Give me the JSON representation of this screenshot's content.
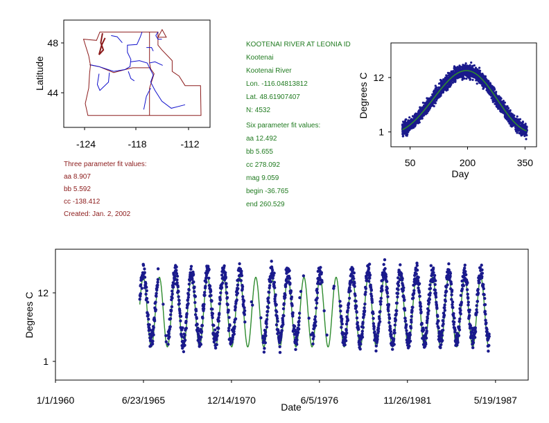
{
  "colors": {
    "state_border": "#8b1a1a",
    "river": "#1010cc",
    "points": "#1a1a8c",
    "fit": "#2e8b2e",
    "text_green": "#1f7a1f",
    "text_red": "#8b1a1a"
  },
  "three_param": {
    "heading": "Three parameter fit values:",
    "aa": "aa 8.907",
    "bb": "bb 5.592",
    "cc": "cc -138.412",
    "created": "Created:   Jan. 2, 2002"
  },
  "station": {
    "name": "KOOTENAI RIVER AT LEONIA ID",
    "county": "Kootenai",
    "river": "Kootenai River",
    "lon": "Lon. -116.04813812",
    "lat": "Lat. 48.61907407",
    "n": "N: 4532"
  },
  "six_param": {
    "heading": "Six parameter fit values:",
    "aa": "aa 12.492",
    "bb": "bb 5.655",
    "cc": "cc 278.092",
    "mag": "mag 9.059",
    "begin": "begin -36.765",
    "end": "end 260.529"
  },
  "chart_data": [
    {
      "type": "map",
      "ylabel": "Latitude",
      "xlabel": "",
      "xlim": [
        -127,
        -110
      ],
      "ylim": [
        41,
        50
      ],
      "x_ticks": [
        "-124",
        "-118",
        "-112"
      ],
      "y_ticks": [
        "48",
        "44"
      ],
      "marker": {
        "lon": -116.05,
        "lat": 48.62
      }
    },
    {
      "type": "scatter",
      "xlabel": "Day",
      "ylabel": "Degrees C",
      "xlim": [
        0,
        380
      ],
      "ylim": [
        -2,
        19
      ],
      "x_ticks": [
        50,
        200,
        350
      ],
      "y_ticks": [
        1,
        12
      ],
      "fit": {
        "aa": 12.492,
        "bb": 5.655,
        "cc": 278.092,
        "mag": 9.059,
        "begin": -36.765,
        "end": 260.529
      },
      "n_points": 4532
    },
    {
      "type": "scatter",
      "xlabel": "Date",
      "ylabel": "Degrees C",
      "xlim": [
        "1/1/1960",
        "6/1/1989"
      ],
      "ylim": [
        -2,
        19
      ],
      "x_ticks": [
        "1/1/1960",
        "6/23/1965",
        "12/14/1970",
        "6/5/1976",
        "11/26/1981",
        "5/19/1987"
      ],
      "y_ticks": [
        1,
        12
      ],
      "data_start": "4/1/1965",
      "data_end": "12/31/1986",
      "fit": {
        "aa": 8.907,
        "bb": 5.592,
        "cc": -138.412
      }
    }
  ]
}
